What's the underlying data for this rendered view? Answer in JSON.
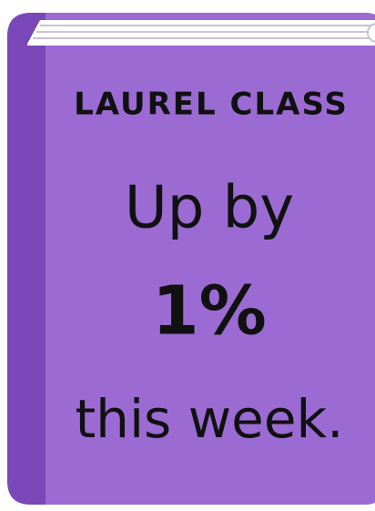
{
  "title": "LAUREL CLASS",
  "lines": [
    "Up by",
    "1%",
    "this week."
  ]
}
